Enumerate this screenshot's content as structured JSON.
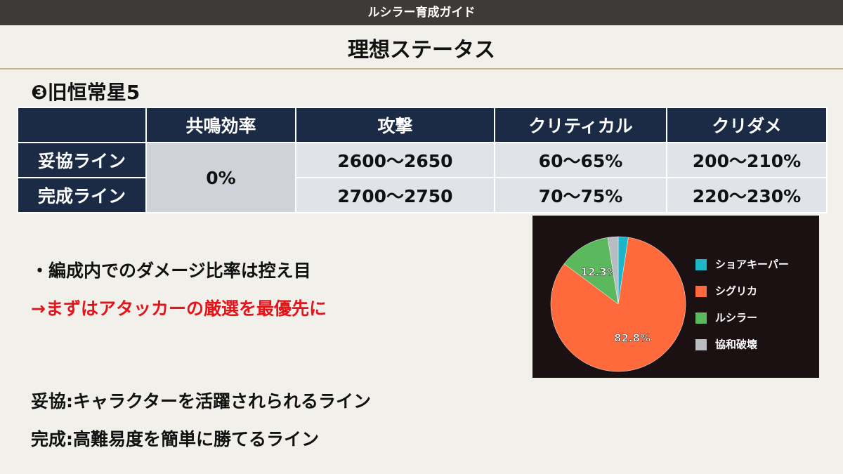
{
  "header": {
    "banner": "ルシラー育成ガイド",
    "title": "理想ステータス"
  },
  "section": "❸旧恒常星5",
  "table": {
    "columns": [
      "共鳴効率",
      "攻撃",
      "クリティカル",
      "クリダメ"
    ],
    "resonance": "0%",
    "rows": [
      {
        "label": "妥協ライン",
        "values": [
          "2600～2650",
          "60～65%",
          "200～210%"
        ]
      },
      {
        "label": "完成ライン",
        "values": [
          "2700～2750",
          "70～75%",
          "220～230%"
        ]
      }
    ]
  },
  "notes": [
    "・編成内でのダメージ比率は控え目",
    "→まずはアタッカーの厳選を最優先に"
  ],
  "definitions": [
    "妥協:キャラクターを活躍されられるライン",
    "完成:高難易度を簡単に勝てるライン"
  ],
  "chart_data": {
    "type": "pie",
    "categories": [
      "ショアキーパー",
      "シグリカ",
      "ルシラー",
      "協和破壊"
    ],
    "values": [
      2.4,
      82.8,
      12.3,
      2.5
    ],
    "value_labels": [
      null,
      "82.8%",
      "12.3%",
      null
    ],
    "colors": [
      "#1cb5c9",
      "#ff6a3d",
      "#5cb85c",
      "#b9bcc3"
    ]
  }
}
